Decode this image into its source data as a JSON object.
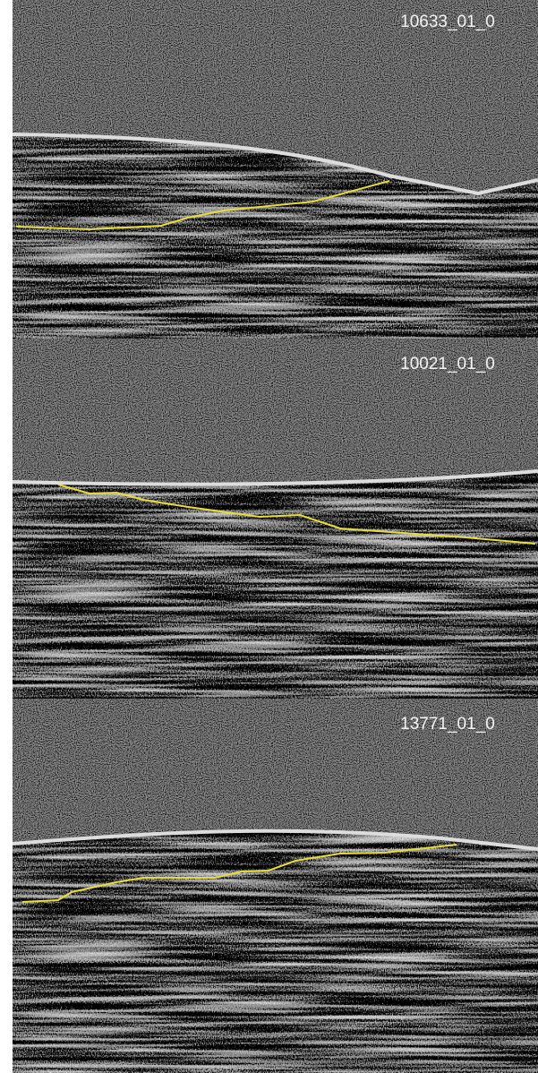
{
  "panels": [
    {
      "label": "10633_01_0"
    },
    {
      "label": "10021_01_0"
    },
    {
      "label": "13771_01_0"
    }
  ]
}
